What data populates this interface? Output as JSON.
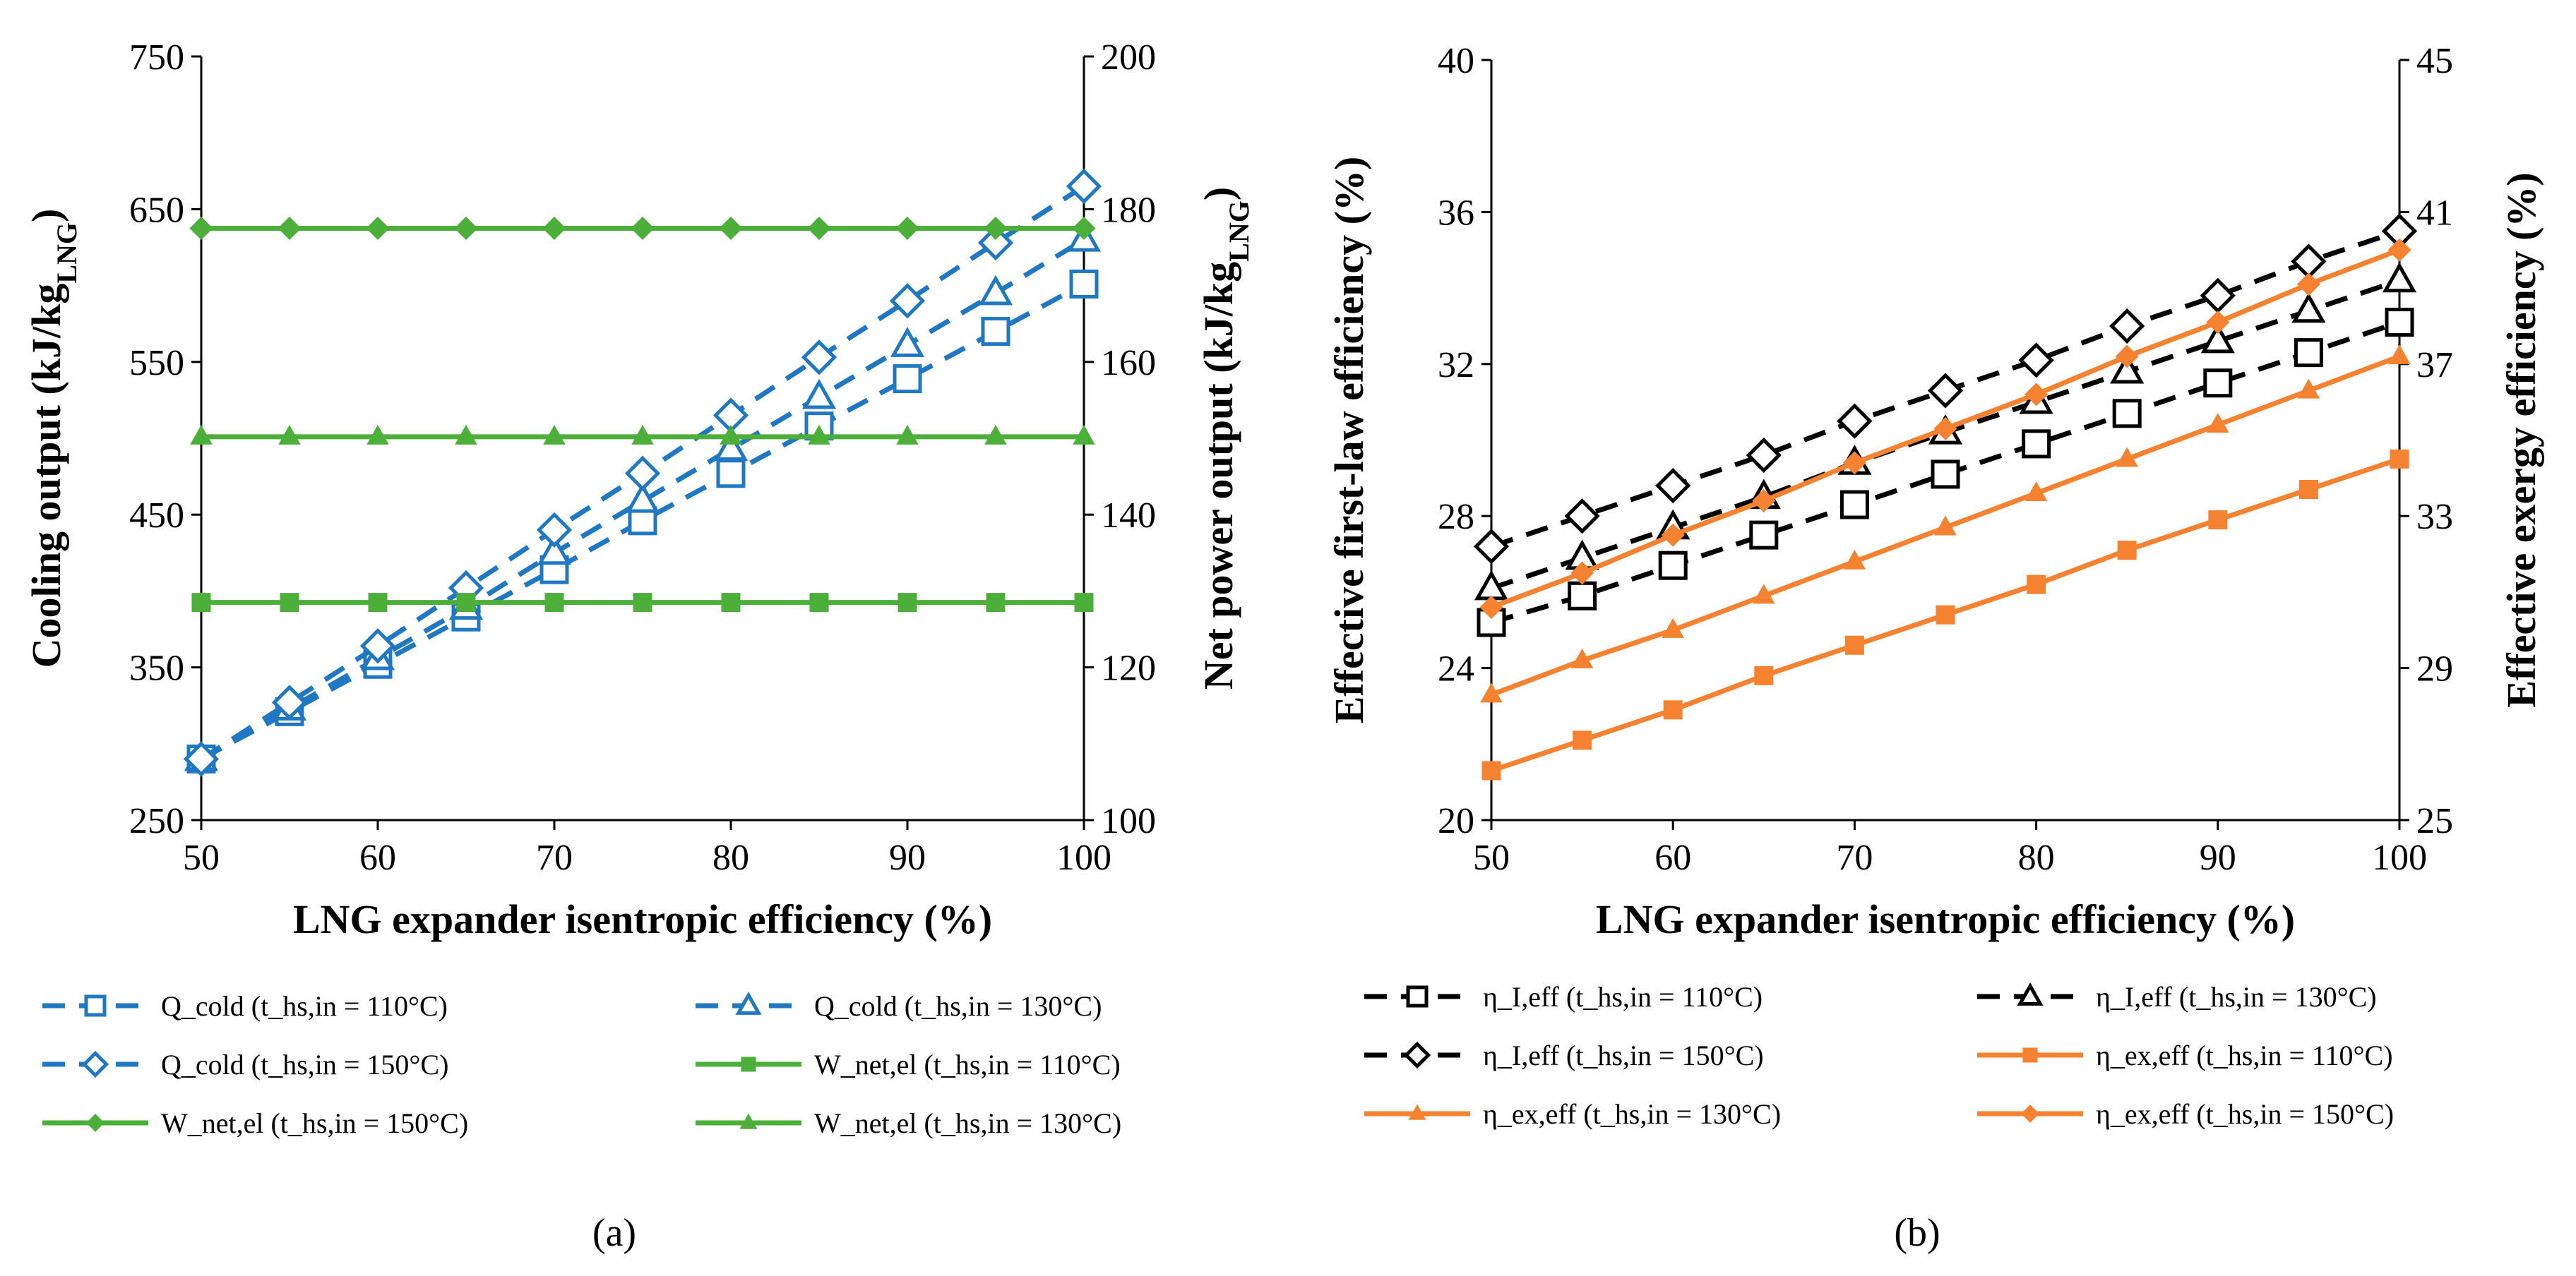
{
  "chart_data": [
    {
      "type": "line",
      "panel_label": "(a)",
      "panel_letter": "a",
      "xlabel": "LNG expander isentropic efficiency (%)",
      "ylabel_left": "Cooling output (kJ/kg",
      "ylabel_left_sub": "LNG",
      "ylabel_right": "Net power output (kJ/kg",
      "ylabel_right_sub": "LNG",
      "xlim": [
        50,
        100
      ],
      "ylim_left": [
        250,
        750
      ],
      "ylim_right": [
        100,
        200
      ],
      "xticks": [
        "50",
        "60",
        "70",
        "80",
        "90",
        "100"
      ],
      "yticks_left": [
        "250",
        "350",
        "450",
        "550",
        "650",
        "750"
      ],
      "yticks_right": [
        "100",
        "120",
        "140",
        "160",
        "180",
        "200"
      ],
      "x": [
        50,
        55,
        60,
        65,
        70,
        75,
        80,
        85,
        90,
        95,
        100
      ],
      "series": [
        {
          "name": "Q_cold (t_hs,in = 110°C)",
          "axis": "left",
          "color": "#1F78C1",
          "dash": "dash",
          "marker": "square-open",
          "values": [
            290,
            321,
            352,
            383,
            414,
            446,
            477,
            508,
            539,
            570,
            601
          ]
        },
        {
          "name": "Q_cold (t_hs,in = 130°C)",
          "axis": "left",
          "color": "#1F78C1",
          "dash": "dash",
          "marker": "triangle-open",
          "values": [
            290,
            323,
            356,
            389,
            425,
            459,
            493,
            527,
            561,
            595,
            630
          ]
        },
        {
          "name": "Q_cold (t_hs,in = 150°C)",
          "axis": "left",
          "color": "#1F78C1",
          "dash": "dash",
          "marker": "diamond-open",
          "values": [
            290,
            327,
            364,
            402,
            440,
            477,
            515,
            553,
            590,
            628,
            665
          ]
        },
        {
          "name": "W_net,el (t_hs,in = 110°C)",
          "axis": "right",
          "color": "#4CAF3A",
          "dash": "solid",
          "marker": "square-filled",
          "values": [
            128.5,
            128.5,
            128.5,
            128.5,
            128.5,
            128.5,
            128.5,
            128.5,
            128.5,
            128.5,
            128.5
          ]
        },
        {
          "name": "W_net,el (t_hs,in = 150°C)",
          "axis": "right",
          "color": "#4CAF3A",
          "dash": "solid",
          "marker": "diamond-filled",
          "values": [
            177.5,
            177.5,
            177.5,
            177.5,
            177.5,
            177.5,
            177.5,
            177.5,
            177.5,
            177.5,
            177.5
          ]
        },
        {
          "name": "W_net,el (t_hs,in = 130°C)",
          "axis": "right",
          "color": "#4CAF3A",
          "dash": "solid",
          "marker": "triangle-filled",
          "values": [
            150.2,
            150.2,
            150.2,
            150.2,
            150.2,
            150.2,
            150.2,
            150.2,
            150.2,
            150.2,
            150.2
          ]
        }
      ],
      "legend_order": [
        0,
        1,
        2,
        3,
        4,
        5
      ],
      "legend_placement": "bottom, two columns"
    },
    {
      "type": "line",
      "panel_label": "(b)",
      "panel_letter": "b",
      "xlabel": "LNG expander isentropic efficiency (%)",
      "ylabel_left": "Effective first-law efficiency (%)",
      "ylabel_right": "Effective exergy efficiency (%)",
      "xlim": [
        50,
        100
      ],
      "ylim_left": [
        20,
        40
      ],
      "ylim_right": [
        25,
        45
      ],
      "xticks": [
        "50",
        "60",
        "70",
        "80",
        "90",
        "100"
      ],
      "yticks_left": [
        "20",
        "24",
        "28",
        "32",
        "36",
        "40"
      ],
      "yticks_right": [
        "25",
        "29",
        "33",
        "37",
        "41",
        "45"
      ],
      "x": [
        50,
        55,
        60,
        65,
        70,
        75,
        80,
        85,
        90,
        95,
        100
      ],
      "series": [
        {
          "name": "η_I,eff (t_hs,in = 110°C)",
          "axis": "left",
          "color": "#000000",
          "dash": "dash",
          "marker": "square-open",
          "values": [
            25.2,
            25.9,
            26.7,
            27.5,
            28.3,
            29.1,
            29.9,
            30.7,
            31.5,
            32.3,
            33.1
          ]
        },
        {
          "name": "η_I,eff (t_hs,in = 130°C)",
          "axis": "left",
          "color": "#000000",
          "dash": "dash",
          "marker": "triangle-open",
          "values": [
            26.1,
            26.9,
            27.7,
            28.5,
            29.4,
            30.2,
            31.0,
            31.8,
            32.6,
            33.4,
            34.2
          ]
        },
        {
          "name": "η_I,eff (t_hs,in = 150°C)",
          "axis": "left",
          "color": "#000000",
          "dash": "dash",
          "marker": "diamond-open",
          "values": [
            27.2,
            28.0,
            28.8,
            29.6,
            30.5,
            31.3,
            32.1,
            33.0,
            33.8,
            34.7,
            35.5
          ]
        },
        {
          "name": "η_ex,eff (t_hs,in = 110°C)",
          "axis": "right",
          "color": "#F58231",
          "dash": "solid",
          "marker": "square-filled",
          "values": [
            26.3,
            27.1,
            27.9,
            28.8,
            29.6,
            30.4,
            31.2,
            32.1,
            32.9,
            33.7,
            34.5
          ]
        },
        {
          "name": "η_ex,eff (t_hs,in = 130°C)",
          "axis": "right",
          "color": "#F58231",
          "dash": "solid",
          "marker": "triangle-filled",
          "values": [
            28.3,
            29.2,
            30.0,
            30.9,
            31.8,
            32.7,
            33.6,
            34.5,
            35.4,
            36.3,
            37.2
          ]
        },
        {
          "name": "η_ex,eff (t_hs,in = 150°C)",
          "axis": "right",
          "color": "#F58231",
          "dash": "solid",
          "marker": "diamond-filled",
          "values": [
            30.6,
            31.5,
            32.5,
            33.4,
            34.4,
            35.3,
            36.2,
            37.2,
            38.1,
            39.1,
            40.0
          ]
        }
      ],
      "legend_order": [
        0,
        1,
        2,
        3,
        4,
        5
      ],
      "legend_placement": "bottom, two columns"
    }
  ]
}
